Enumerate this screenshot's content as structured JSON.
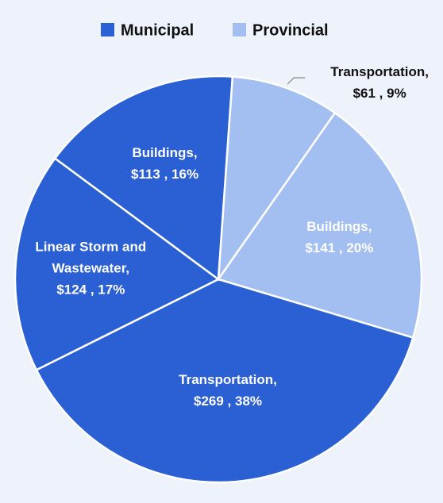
{
  "chart_data": {
    "type": "pie",
    "series": [
      {
        "name": "Municipal",
        "color": "#2b5fd4",
        "categories": [
          "Transportation,",
          "Linear Storm and Wastewater,",
          "Buildings,"
        ],
        "values": [
          269,
          124,
          113
        ],
        "value_labels": [
          "$269 , 38%",
          "$124 , 17%",
          "$113 , 16%"
        ]
      },
      {
        "name": "Provincial",
        "color": "#a3bff1",
        "categories": [
          "Transportation,",
          "Buildings,"
        ],
        "values": [
          61,
          141
        ],
        "value_labels": [
          "$61 , 9%",
          "$141 , 20%"
        ]
      }
    ],
    "legend": "top"
  }
}
